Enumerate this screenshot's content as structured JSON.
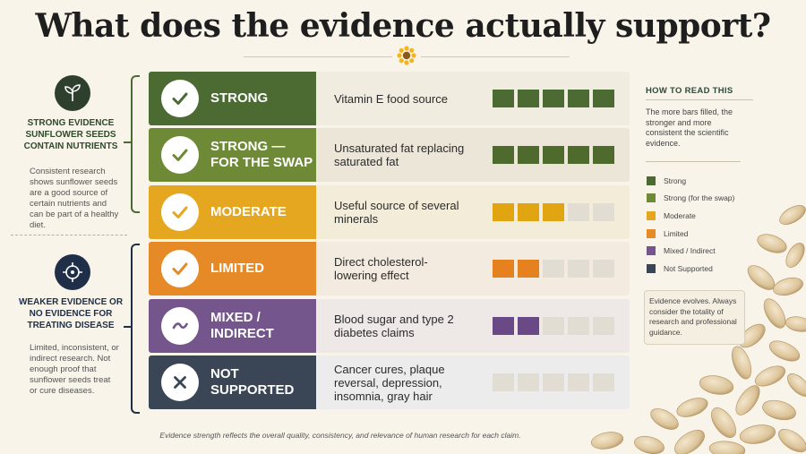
{
  "title": "What does the evidence actually support?",
  "left_panel": {
    "strong": {
      "icon": "sprout-icon",
      "heading": "Strong evidence sunflower seeds contain nutrients",
      "body": "Consistent research shows sunflower seeds are a good source of certain nutrients and can be part of a healthy diet."
    },
    "weak": {
      "icon": "target-icon",
      "heading": "Weaker evidence or no evidence for treating disease",
      "body": "Limited, inconsistent, or indirect research. Not enough proof that sunflower seeds treat or cure diseases."
    }
  },
  "rows": [
    {
      "label": "Strong",
      "claim": "Vitamin E food source",
      "filled": 5,
      "icon": "check-icon",
      "color": "#4c6b33",
      "bar_color": "#4c6b33"
    },
    {
      "label": "Strong — for the swap",
      "claim": "Unsaturated fat replacing saturated fat",
      "filled": 5,
      "icon": "check-icon",
      "color": "#6f8a36",
      "bar_color": "#4e6a2c"
    },
    {
      "label": "Moderate",
      "claim": "Useful source of several minerals",
      "filled": 3,
      "icon": "check-icon",
      "color": "#e5a71f",
      "bar_color": "#e1a512"
    },
    {
      "label": "Limited",
      "claim": "Direct cholesterol-lowering effect",
      "filled": 2,
      "icon": "check-icon",
      "color": "#e58a27",
      "bar_color": "#e5821f"
    },
    {
      "label": "Mixed / Indirect",
      "claim": "Blood sugar and type 2 diabetes claims",
      "filled": 2,
      "icon": "tilde-icon",
      "color": "#75568c",
      "bar_color": "#6a4a86"
    },
    {
      "label": "Not supported",
      "claim": "Cancer cures, plaque reversal, depression, insomnia, gray hair",
      "filled": 0,
      "icon": "x-icon",
      "color": "#3a4656",
      "bar_color": "#3a4656"
    }
  ],
  "right_panel": {
    "heading": "How to read this",
    "explanation": "The more bars filled, the stronger and more consistent the scientific evidence.",
    "legend": [
      {
        "label": "Strong",
        "color": "#4c6b33"
      },
      {
        "label": "Strong (for the swap)",
        "color": "#6f8a36"
      },
      {
        "label": "Moderate",
        "color": "#e5a71f"
      },
      {
        "label": "Limited",
        "color": "#e58a27"
      },
      {
        "label": "Mixed / Indirect",
        "color": "#75568c"
      },
      {
        "label": "Not Supported",
        "color": "#3a4656"
      }
    ],
    "note": "Evidence evolves. Always consider the totality of research and professional guidance."
  },
  "footnote": "Evidence strength reflects the overall quality, consistency, and relevance of human research for each claim."
}
